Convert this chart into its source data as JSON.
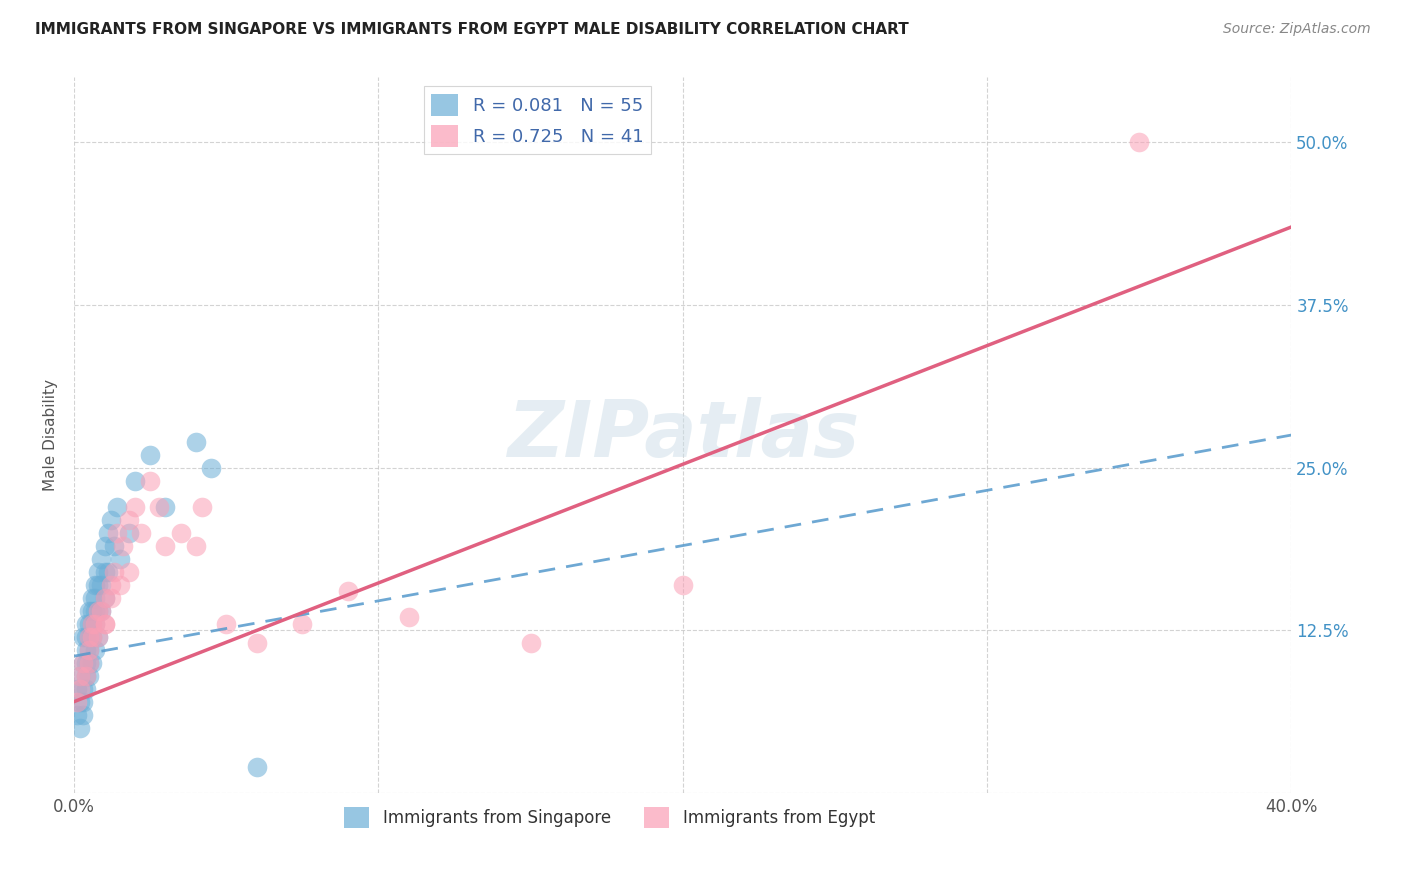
{
  "title": "IMMIGRANTS FROM SINGAPORE VS IMMIGRANTS FROM EGYPT MALE DISABILITY CORRELATION CHART",
  "source": "Source: ZipAtlas.com",
  "ylabel": "Male Disability",
  "xlim": [
    0.0,
    0.4
  ],
  "ylim": [
    0.0,
    0.55
  ],
  "xtick_positions": [
    0.0,
    0.1,
    0.2,
    0.3,
    0.4
  ],
  "xticklabels": [
    "0.0%",
    "",
    "",
    "",
    "40.0%"
  ],
  "ytick_positions": [
    0.0,
    0.125,
    0.25,
    0.375,
    0.5
  ],
  "ytick_labels": [
    "",
    "12.5%",
    "25.0%",
    "37.5%",
    "50.0%"
  ],
  "singapore_color": "#6baed6",
  "egypt_color": "#fa9fb5",
  "singapore_line_color": "#5599cc",
  "egypt_line_color": "#e06080",
  "R_singapore": 0.081,
  "N_singapore": 55,
  "R_egypt": 0.725,
  "N_egypt": 41,
  "watermark": "ZIPatlas",
  "sg_line_x": [
    0.0,
    0.4
  ],
  "sg_line_y": [
    0.105,
    0.275
  ],
  "eg_line_x": [
    0.0,
    0.4
  ],
  "eg_line_y": [
    0.07,
    0.435
  ],
  "singapore_x": [
    0.001,
    0.001,
    0.002,
    0.002,
    0.002,
    0.003,
    0.003,
    0.003,
    0.003,
    0.003,
    0.004,
    0.004,
    0.004,
    0.004,
    0.004,
    0.004,
    0.005,
    0.005,
    0.005,
    0.005,
    0.005,
    0.005,
    0.006,
    0.006,
    0.006,
    0.006,
    0.006,
    0.007,
    0.007,
    0.007,
    0.007,
    0.007,
    0.008,
    0.008,
    0.008,
    0.008,
    0.009,
    0.009,
    0.009,
    0.01,
    0.01,
    0.01,
    0.011,
    0.011,
    0.012,
    0.013,
    0.014,
    0.015,
    0.018,
    0.02,
    0.025,
    0.03,
    0.04,
    0.045,
    0.06
  ],
  "singapore_y": [
    0.08,
    0.06,
    0.09,
    0.07,
    0.05,
    0.12,
    0.1,
    0.08,
    0.07,
    0.06,
    0.13,
    0.12,
    0.11,
    0.1,
    0.09,
    0.08,
    0.14,
    0.13,
    0.12,
    0.11,
    0.1,
    0.09,
    0.15,
    0.14,
    0.13,
    0.12,
    0.1,
    0.16,
    0.15,
    0.14,
    0.13,
    0.11,
    0.17,
    0.16,
    0.14,
    0.12,
    0.18,
    0.16,
    0.14,
    0.19,
    0.17,
    0.15,
    0.2,
    0.17,
    0.21,
    0.19,
    0.22,
    0.18,
    0.2,
    0.24,
    0.26,
    0.22,
    0.27,
    0.25,
    0.02
  ],
  "egypt_x": [
    0.001,
    0.002,
    0.002,
    0.003,
    0.004,
    0.005,
    0.005,
    0.005,
    0.006,
    0.006,
    0.007,
    0.008,
    0.008,
    0.009,
    0.01,
    0.01,
    0.01,
    0.012,
    0.012,
    0.013,
    0.014,
    0.015,
    0.016,
    0.018,
    0.018,
    0.02,
    0.022,
    0.025,
    0.028,
    0.03,
    0.035,
    0.04,
    0.042,
    0.05,
    0.06,
    0.075,
    0.09,
    0.11,
    0.15,
    0.2,
    0.35
  ],
  "egypt_y": [
    0.07,
    0.08,
    0.09,
    0.1,
    0.09,
    0.12,
    0.11,
    0.1,
    0.13,
    0.12,
    0.13,
    0.14,
    0.12,
    0.14,
    0.13,
    0.15,
    0.13,
    0.16,
    0.15,
    0.17,
    0.2,
    0.16,
    0.19,
    0.21,
    0.17,
    0.22,
    0.2,
    0.24,
    0.22,
    0.19,
    0.2,
    0.19,
    0.22,
    0.13,
    0.115,
    0.13,
    0.155,
    0.135,
    0.115,
    0.16,
    0.5
  ]
}
